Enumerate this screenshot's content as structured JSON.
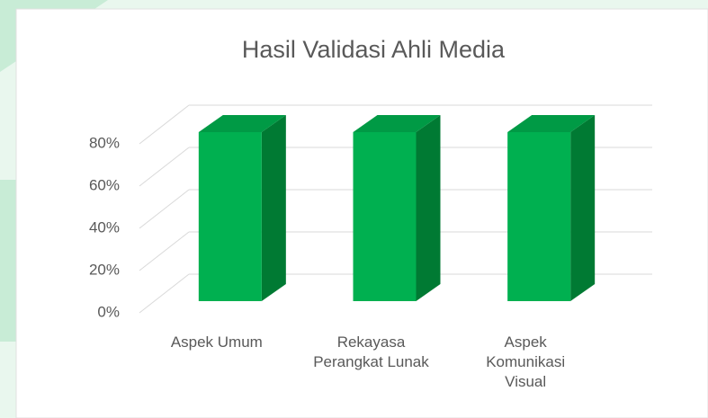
{
  "chart_data": {
    "type": "bar3d",
    "title": "Hasil Validasi Ahli Media",
    "categories": [
      "Aspek Umum",
      "Rekayasa Perangkat Lunak",
      "Aspek Komunikasi Visual"
    ],
    "values": [
      80,
      80,
      80
    ],
    "color": "#00b050",
    "ylim": [
      0,
      80
    ],
    "yticks": [
      {
        "value": 0,
        "label": "0%"
      },
      {
        "value": 20,
        "label": "20%"
      },
      {
        "value": 40,
        "label": "40%"
      },
      {
        "value": 60,
        "label": "60%"
      },
      {
        "value": 80,
        "label": "80%"
      }
    ],
    "grid": true
  }
}
